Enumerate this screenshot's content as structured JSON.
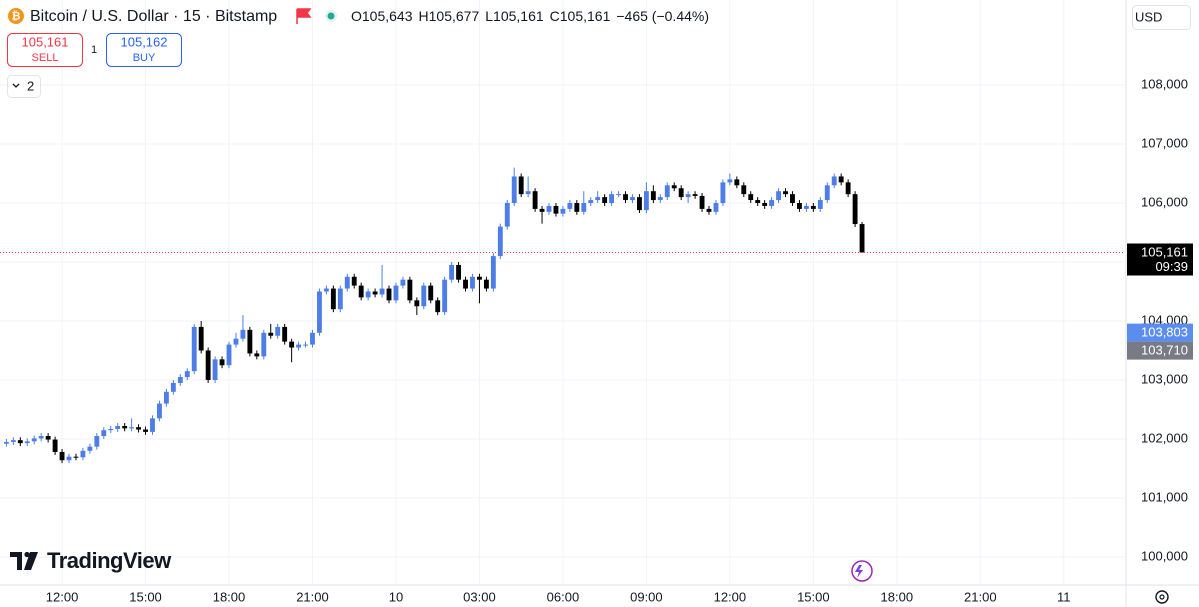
{
  "header": {
    "symbol": "Bitcoin / U.S. Dollar · 15 · Bitstamp",
    "ohlc": [
      {
        "key": "O",
        "value": "105,643"
      },
      {
        "key": "H",
        "value": "105,677"
      },
      {
        "key": "L",
        "value": "105,161"
      },
      {
        "key": "C",
        "value": "105,161"
      }
    ],
    "change": "−465 (−0.44%)",
    "currency": "USD"
  },
  "trade": {
    "sell_price": "105,161",
    "sell": "SELL",
    "quantity": "1",
    "buy_price": "105,162",
    "buy": "BUY"
  },
  "indicators": "2",
  "logo": "TradingView",
  "chart_data": {
    "type": "candlestick",
    "up_color": "#4d7ee8",
    "down_color": "#000000",
    "grid": true,
    "xlim": [
      9.77,
      50.2
    ],
    "xticks": [
      {
        "value": 12,
        "label": "12:00"
      },
      {
        "value": 15,
        "label": "15:00"
      },
      {
        "value": 18,
        "label": "18:00"
      },
      {
        "value": 21,
        "label": "21:00"
      },
      {
        "value": 24,
        "label": "10"
      },
      {
        "value": 27,
        "label": "03:00"
      },
      {
        "value": 30,
        "label": "06:00"
      },
      {
        "value": 33,
        "label": "09:00"
      },
      {
        "value": 36,
        "label": "12:00"
      },
      {
        "value": 39,
        "label": "15:00"
      },
      {
        "value": 42,
        "label": "18:00"
      },
      {
        "value": 45,
        "label": "21:00"
      },
      {
        "value": 48,
        "label": "11"
      }
    ],
    "ylim": [
      99525,
      109441
    ],
    "yticks": [
      {
        "value": 100000,
        "label": "100,000"
      },
      {
        "value": 101000,
        "label": "101,000"
      },
      {
        "value": 102000,
        "label": "102,000"
      },
      {
        "value": 103000,
        "label": "103,000"
      },
      {
        "value": 104000,
        "label": "104,000"
      },
      {
        "value": 105000,
        "label": "105,000"
      },
      {
        "value": 106000,
        "label": "106,000"
      },
      {
        "value": 107000,
        "label": "107,000"
      },
      {
        "value": 108000,
        "label": "108,000"
      }
    ],
    "x": [
      10,
      10.25,
      10.5,
      10.75,
      11,
      11.25,
      11.5,
      11.75,
      12,
      12.25,
      12.5,
      12.75,
      13,
      13.25,
      13.5,
      13.75,
      14,
      14.25,
      14.5,
      14.75,
      15,
      15.25,
      15.5,
      15.75,
      16,
      16.25,
      16.5,
      16.75,
      17,
      17.25,
      17.5,
      17.75,
      18,
      18.25,
      18.5,
      18.75,
      19,
      19.25,
      19.5,
      19.75,
      20,
      20.25,
      20.5,
      20.75,
      21,
      21.25,
      21.5,
      21.75,
      22,
      22.25,
      22.5,
      22.75,
      23,
      23.25,
      23.5,
      23.75,
      24,
      24.25,
      24.5,
      24.75,
      25,
      25.25,
      25.5,
      25.75,
      26,
      26.25,
      26.5,
      26.75,
      27,
      27.25,
      27.5,
      27.75,
      28,
      28.25,
      28.5,
      28.75,
      29,
      29.25,
      29.5,
      29.75,
      30,
      30.25,
      30.5,
      30.75,
      31,
      31.25,
      31.5,
      31.75,
      32,
      32.25,
      32.5,
      32.75,
      33,
      33.25,
      33.5,
      33.75,
      34,
      34.25,
      34.5,
      34.75,
      35,
      35.25,
      35.5,
      35.75,
      36,
      36.25,
      36.5,
      36.75,
      37,
      37.25,
      37.5,
      37.75,
      38,
      38.25,
      38.5,
      38.75,
      39,
      39.25,
      39.5,
      39.75,
      40,
      40.25,
      40.5,
      40.75
    ],
    "open": [
      101920,
      101950,
      101980,
      101930,
      101960,
      102010,
      102050,
      101990,
      101780,
      101640,
      101700,
      101690,
      101800,
      101870,
      102050,
      102150,
      102170,
      102220,
      102180,
      102200,
      102160,
      102120,
      102350,
      102600,
      102800,
      102950,
      103050,
      103150,
      103900,
      103500,
      103000,
      103350,
      103250,
      103600,
      103700,
      103850,
      103450,
      103400,
      103800,
      103750,
      103900,
      103650,
      103550,
      103600,
      103600,
      103800,
      104500,
      104550,
      104200,
      104550,
      104750,
      104600,
      104400,
      104500,
      104450,
      104550,
      104350,
      104600,
      104700,
      104350,
      104250,
      104600,
      104350,
      104150,
      104700,
      104950,
      104700,
      104550,
      104750,
      104700,
      104550,
      105100,
      105600,
      106000,
      106450,
      106150,
      106200,
      105900,
      105850,
      105950,
      105820,
      105900,
      106000,
      105850,
      106000,
      106050,
      106100,
      106000,
      106150,
      106150,
      106050,
      106100,
      105880,
      106200,
      106050,
      106100,
      106300,
      106250,
      106100,
      106150,
      106120,
      105900,
      105850,
      106000,
      106350,
      106400,
      106300,
      106150,
      106050,
      106000,
      105950,
      106050,
      106200,
      106150,
      106000,
      105900,
      105950,
      105900,
      106050,
      106300,
      106450,
      106350,
      106150,
      105643
    ],
    "high": [
      102000,
      102030,
      102030,
      102010,
      102060,
      102100,
      102100,
      102040,
      101830,
      101750,
      101750,
      101850,
      101920,
      102100,
      102200,
      102220,
      102270,
      102270,
      102350,
      102250,
      102210,
      102400,
      102650,
      102850,
      103000,
      103100,
      103200,
      103950,
      104000,
      103550,
      103400,
      103400,
      103650,
      103800,
      104100,
      103900,
      103500,
      103850,
      103950,
      103950,
      103950,
      103700,
      103650,
      103650,
      103850,
      104550,
      104600,
      104600,
      104600,
      104800,
      104800,
      104650,
      104550,
      104550,
      104950,
      104600,
      104650,
      104750,
      104750,
      104400,
      104650,
      104650,
      104400,
      104750,
      105000,
      105000,
      104750,
      104800,
      104800,
      104750,
      105150,
      105650,
      106050,
      106600,
      106500,
      106450,
      106250,
      105950,
      106000,
      106000,
      105950,
      106050,
      106050,
      106200,
      106100,
      106200,
      106150,
      106200,
      106200,
      106200,
      106150,
      106150,
      106350,
      106300,
      106150,
      106350,
      106350,
      106300,
      106200,
      106200,
      106170,
      105950,
      106050,
      106400,
      106500,
      106450,
      106350,
      106200,
      106100,
      106050,
      106100,
      106250,
      106250,
      106200,
      106050,
      106000,
      106000,
      106100,
      106350,
      106500,
      106500,
      106400,
      106200,
      105677
    ],
    "low": [
      101870,
      101900,
      101880,
      101880,
      101910,
      101960,
      101940,
      101730,
      101590,
      101590,
      101640,
      101640,
      101750,
      101820,
      102000,
      102100,
      102120,
      102130,
      102130,
      102110,
      102070,
      102070,
      102300,
      102550,
      102750,
      102900,
      103000,
      103100,
      103450,
      102950,
      102950,
      103200,
      103200,
      103550,
      103650,
      103400,
      103350,
      103350,
      103700,
      103700,
      103600,
      103300,
      103500,
      103550,
      103550,
      103750,
      104450,
      104150,
      104150,
      104500,
      104550,
      104350,
      104350,
      104400,
      104400,
      104300,
      104300,
      104550,
      104300,
      104100,
      104200,
      104300,
      104100,
      104100,
      104650,
      104650,
      104500,
      104500,
      104300,
      104500,
      104500,
      105050,
      105550,
      105950,
      106100,
      106100,
      105850,
      105650,
      105800,
      105770,
      105770,
      105850,
      105800,
      105800,
      105950,
      106000,
      105950,
      105950,
      106100,
      106000,
      106000,
      105830,
      105830,
      106000,
      106000,
      106050,
      106200,
      106050,
      106000,
      106070,
      105850,
      105800,
      105800,
      105950,
      106300,
      106250,
      106100,
      106000,
      105950,
      105900,
      105900,
      106000,
      106100,
      105950,
      105850,
      105850,
      105850,
      105850,
      106000,
      106250,
      106300,
      106100,
      105593,
      105161
    ],
    "close": [
      101950,
      101980,
      101930,
      101960,
      102010,
      102050,
      101990,
      101780,
      101640,
      101700,
      101690,
      101800,
      101870,
      102050,
      102150,
      102170,
      102220,
      102180,
      102200,
      102160,
      102120,
      102350,
      102600,
      102800,
      102950,
      103050,
      103150,
      103900,
      103500,
      103000,
      103350,
      103250,
      103600,
      103700,
      103850,
      103450,
      103400,
      103800,
      103750,
      103900,
      103650,
      103550,
      103600,
      103600,
      103800,
      104500,
      104550,
      104200,
      104550,
      104750,
      104600,
      104400,
      104500,
      104450,
      104550,
      104350,
      104600,
      104700,
      104350,
      104250,
      104600,
      104350,
      104150,
      104700,
      104950,
      104700,
      104550,
      104750,
      104700,
      104550,
      105100,
      105600,
      106000,
      106450,
      106150,
      106200,
      105900,
      105850,
      105950,
      105820,
      105900,
      106000,
      105850,
      106000,
      106050,
      106100,
      106000,
      106150,
      106150,
      106050,
      106100,
      105880,
      106200,
      106050,
      106100,
      106300,
      106250,
      106100,
      106150,
      106120,
      105900,
      105850,
      106000,
      106350,
      106400,
      106300,
      106150,
      106050,
      106000,
      105950,
      106050,
      106200,
      106150,
      106000,
      105900,
      105950,
      105900,
      106050,
      106300,
      106450,
      106350,
      106150,
      105643,
      105161
    ],
    "last_line_color": "#f23645",
    "price_labels": [
      {
        "value": 105161,
        "label": "105,161",
        "sub": "09:39",
        "color": "#000000"
      },
      {
        "value": 103803,
        "label": "103,803",
        "color": "#5b8def"
      },
      {
        "value": 103710,
        "label": "103,710",
        "color": "#787b86"
      }
    ]
  }
}
